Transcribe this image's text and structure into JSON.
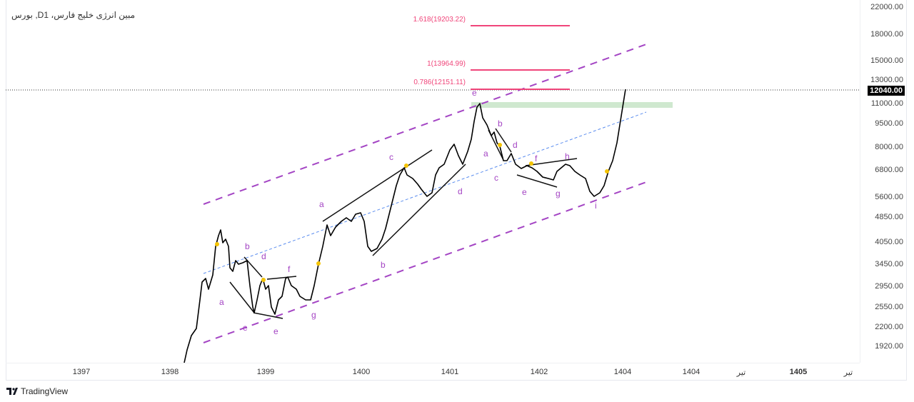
{
  "chart_title": "بورس ,Dمبین انرژی خلیج فارس، 1",
  "price_axis": [
    "22000.00",
    "18000.00",
    "15000.00",
    "13000.00",
    "11000.00",
    "9500.00",
    "8000.00",
    "6800.00",
    "5600.00",
    "4850.00",
    "4050.00",
    "3450.00",
    "2950.00",
    "2550.00",
    "2200.00",
    "1920.00"
  ],
  "current_price": "12040.00",
  "time_axis": [
    "1397",
    "1398",
    "1399",
    "1400",
    "1401",
    "1402",
    "1404",
    "1404",
    "تیر",
    "1405",
    "تیر"
  ],
  "fib_levels": [
    "1.618(19203.22)",
    "1(13964.99)",
    "0.786(12151.11)"
  ],
  "wave_labels": [
    "a",
    "b",
    "d",
    "e",
    "e",
    "f",
    "g",
    "a",
    "b",
    "c",
    "d",
    "e",
    "a",
    "b",
    "c",
    "d",
    "e",
    "f",
    "g",
    "h",
    "i"
  ],
  "brand": "TradingView",
  "colors": {
    "fib": "#f0457a",
    "channel": "#a445c4",
    "mid": "#5b8def",
    "zone": "#cfe8cf",
    "marker": "#f5c400"
  }
}
